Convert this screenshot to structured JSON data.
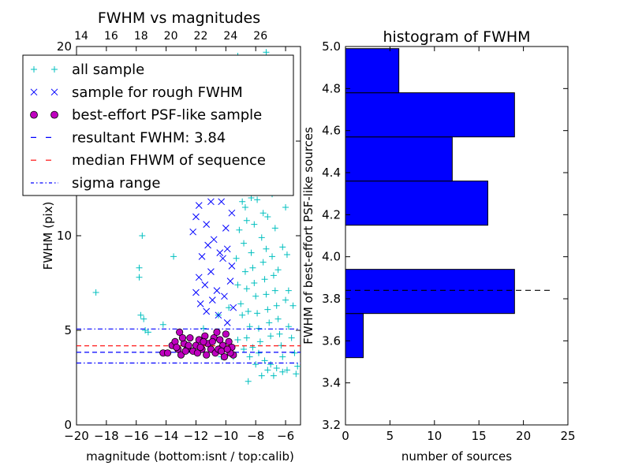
{
  "chart_data": [
    {
      "type": "scatter",
      "title": "FWHM vs magnitudes",
      "xlabel": "magnitude (bottom:isnt / top:calib)",
      "ylabel": "FWHM (pix)",
      "xlim": [
        -20,
        -5
      ],
      "ylim": [
        0,
        20
      ],
      "xticks": [
        -20,
        -18,
        -16,
        -14,
        -12,
        -10,
        -8,
        -6
      ],
      "yticks": [
        0,
        5,
        10,
        15,
        20
      ],
      "top_axis_ticks": [
        {
          "x": -20.0,
          "label": "14"
        },
        {
          "x": -18.0,
          "label": "16"
        },
        {
          "x": -16.0,
          "label": "18"
        },
        {
          "x": -14.0,
          "label": "20"
        },
        {
          "x": -12.0,
          "label": "22"
        },
        {
          "x": -10.0,
          "label": "24"
        },
        {
          "x": -8.0,
          "label": "26"
        }
      ],
      "legend_position": "upper-left",
      "legend": [
        {
          "label": "all sample",
          "marker": "+",
          "color": "#00bfbf"
        },
        {
          "label": "sample for rough FWHM",
          "marker": "x",
          "color": "#0000ff"
        },
        {
          "label": "best-effort PSF-like sample",
          "marker": "o",
          "color": "#bf00bf"
        },
        {
          "label": "resultant FWHM: 3.84",
          "marker": "dashed",
          "color": "#0000ff"
        },
        {
          "label": "median FHWM of sequence",
          "marker": "dashed",
          "color": "#ff0000"
        },
        {
          "label": "sigma range",
          "marker": "dashdot",
          "color": "#0000ff"
        }
      ],
      "lines": {
        "resultant_fwhm": 3.84,
        "median_fwhm": 4.18,
        "sigma_low": 3.27,
        "sigma_high": 5.07
      },
      "series": [
        {
          "name": "all sample",
          "color": "#00bfbf",
          "marker": "+",
          "points": [
            [
              -18.7,
              7.0
            ],
            [
              -15.6,
              10.0
            ],
            [
              -15.8,
              8.3
            ],
            [
              -15.8,
              7.8
            ],
            [
              -15.4,
              5.0
            ],
            [
              -15.7,
              5.8
            ],
            [
              -15.5,
              5.6
            ],
            [
              -15.2,
              4.9
            ],
            [
              -13.5,
              8.9
            ],
            [
              -14.2,
              5.3
            ],
            [
              -12.9,
              3.8
            ],
            [
              -11.5,
              5.1
            ],
            [
              -10.5,
              5.8
            ],
            [
              -9.8,
              6.2
            ],
            [
              -10.3,
              3.6
            ],
            [
              -9.5,
              3.6
            ],
            [
              -9.2,
              19.5
            ],
            [
              -9.0,
              16.3
            ],
            [
              -8.8,
              12.8
            ],
            [
              -8.7,
              11.5
            ],
            [
              -8.5,
              15.1
            ],
            [
              -8.6,
              10.8
            ],
            [
              -8.4,
              13.5
            ],
            [
              -8.2,
              19.0
            ],
            [
              -8.1,
              14.2
            ],
            [
              -8.0,
              18.5
            ],
            [
              -7.9,
              11.9
            ],
            [
              -7.8,
              12.4
            ],
            [
              -7.7,
              17.6
            ],
            [
              -7.5,
              12.9
            ],
            [
              -7.3,
              19.7
            ],
            [
              -7.2,
              11.0
            ],
            [
              -7.0,
              16.5
            ],
            [
              -6.8,
              14.8
            ],
            [
              -6.5,
              13.0
            ],
            [
              -6.2,
              9.4
            ],
            [
              -6.0,
              19.0
            ],
            [
              -7.6,
              15.0
            ],
            [
              -8.9,
              17.4
            ],
            [
              -8.3,
              16.9
            ],
            [
              -9.4,
              13.2
            ],
            [
              -9.1,
              10.3
            ],
            [
              -9.3,
              8.8
            ],
            [
              -9.2,
              7.4
            ],
            [
              -9.0,
              6.4
            ],
            [
              -8.9,
              5.8
            ],
            [
              -8.8,
              9.6
            ],
            [
              -8.7,
              8.1
            ],
            [
              -8.6,
              7.2
            ],
            [
              -8.5,
              6.0
            ],
            [
              -8.4,
              5.2
            ],
            [
              -8.3,
              9.1
            ],
            [
              -8.2,
              8.3
            ],
            [
              -8.1,
              7.5
            ],
            [
              -8.0,
              6.8
            ],
            [
              -7.9,
              5.9
            ],
            [
              -7.8,
              5.1
            ],
            [
              -7.7,
              4.4
            ],
            [
              -7.6,
              9.9
            ],
            [
              -7.5,
              8.6
            ],
            [
              -7.4,
              7.7
            ],
            [
              -7.3,
              6.9
            ],
            [
              -7.2,
              6.1
            ],
            [
              -7.1,
              5.4
            ],
            [
              -7.0,
              4.7
            ],
            [
              -6.9,
              8.9
            ],
            [
              -6.8,
              7.9
            ],
            [
              -6.7,
              7.1
            ],
            [
              -6.6,
              6.3
            ],
            [
              -6.5,
              5.6
            ],
            [
              -6.4,
              4.8
            ],
            [
              -6.3,
              4.2
            ],
            [
              -6.2,
              3.6
            ],
            [
              -6.0,
              6.6
            ],
            [
              -5.8,
              5.2
            ],
            [
              -5.6,
              4.6
            ],
            [
              -5.4,
              3.8
            ],
            [
              -5.2,
              3.1
            ],
            [
              -8.6,
              4.6
            ],
            [
              -8.2,
              4.1
            ],
            [
              -7.8,
              3.8
            ],
            [
              -7.4,
              3.4
            ],
            [
              -7.0,
              3.2
            ],
            [
              -6.6,
              3.0
            ],
            [
              -6.2,
              2.8
            ],
            [
              -7.2,
              2.9
            ],
            [
              -7.6,
              2.6
            ],
            [
              -8.0,
              3.2
            ],
            [
              -8.4,
              3.6
            ],
            [
              -8.8,
              4.0
            ],
            [
              -9.2,
              4.5
            ],
            [
              -6.8,
              2.6
            ],
            [
              -5.9,
              2.9
            ],
            [
              -8.5,
              2.3
            ],
            [
              -8.9,
              11.8
            ],
            [
              -8.1,
              10.6
            ],
            [
              -7.3,
              9.3
            ],
            [
              -6.5,
              8.2
            ],
            [
              -5.8,
              7.1
            ],
            [
              -9.1,
              14.6
            ],
            [
              -7.9,
              13.8
            ],
            [
              -6.9,
              12.2
            ],
            [
              -8.3,
              12.0
            ],
            [
              -7.5,
              11.2
            ],
            [
              -6.7,
              10.4
            ],
            [
              -5.9,
              9.0
            ],
            [
              -5.5,
              6.3
            ],
            [
              -5.3,
              2.7
            ],
            [
              -9.4,
              17.0
            ],
            [
              -7.0,
              18.0
            ],
            [
              -6.3,
              16.0
            ],
            [
              -6.0,
              11.5
            ]
          ]
        },
        {
          "name": "sample for rough FWHM",
          "color": "#0000ff",
          "marker": "x",
          "points": [
            [
              -12.4,
              14.8
            ],
            [
              -11.9,
              12.8
            ],
            [
              -11.5,
              13.6
            ],
            [
              -11.8,
              11.6
            ],
            [
              -12.0,
              11.0
            ],
            [
              -11.3,
              10.6
            ],
            [
              -11.0,
              11.8
            ],
            [
              -10.6,
              12.9
            ],
            [
              -10.2,
              14.2
            ],
            [
              -9.8,
              13.4
            ],
            [
              -9.6,
              15.8
            ],
            [
              -9.4,
              14.4
            ],
            [
              -10.0,
              10.4
            ],
            [
              -10.8,
              9.8
            ],
            [
              -11.2,
              9.5
            ],
            [
              -11.6,
              8.9
            ],
            [
              -12.2,
              10.2
            ],
            [
              -11.8,
              7.8
            ],
            [
              -11.4,
              7.4
            ],
            [
              -11.0,
              8.1
            ],
            [
              -10.6,
              7.1
            ],
            [
              -10.2,
              8.8
            ],
            [
              -9.9,
              9.3
            ],
            [
              -9.6,
              11.2
            ],
            [
              -9.5,
              12.3
            ],
            [
              -10.4,
              9.1
            ],
            [
              -12.0,
              7.0
            ],
            [
              -11.7,
              6.4
            ],
            [
              -11.3,
              6.0
            ],
            [
              -10.9,
              6.6
            ],
            [
              -10.5,
              5.8
            ],
            [
              -10.1,
              6.8
            ],
            [
              -9.7,
              7.6
            ],
            [
              -9.5,
              6.2
            ],
            [
              -9.9,
              5.4
            ],
            [
              -9.6,
              8.4
            ],
            [
              -10.3,
              11.8
            ],
            [
              -12.6,
              13.4
            ],
            [
              -9.7,
              17.4
            ],
            [
              -9.5,
              18.9
            ],
            [
              -10.8,
              14.6
            ],
            [
              -11.1,
              13.0
            ]
          ]
        },
        {
          "name": "best-effort PSF-like sample",
          "color": "#bf00bf",
          "marker": "o",
          "points": [
            [
              -14.2,
              3.8
            ],
            [
              -13.9,
              3.8
            ],
            [
              -13.6,
              4.2
            ],
            [
              -13.4,
              4.4
            ],
            [
              -13.2,
              4.0
            ],
            [
              -13.0,
              3.7
            ],
            [
              -12.8,
              4.3
            ],
            [
              -12.6,
              4.0
            ],
            [
              -12.4,
              4.6
            ],
            [
              -12.2,
              3.9
            ],
            [
              -12.0,
              4.2
            ],
            [
              -11.8,
              4.5
            ],
            [
              -11.6,
              4.0
            ],
            [
              -11.4,
              4.7
            ],
            [
              -11.2,
              4.3
            ],
            [
              -11.0,
              4.0
            ],
            [
              -10.8,
              4.6
            ],
            [
              -10.6,
              4.9
            ],
            [
              -10.4,
              4.5
            ],
            [
              -10.2,
              4.2
            ],
            [
              -10.0,
              4.8
            ],
            [
              -9.8,
              4.4
            ],
            [
              -9.6,
              4.1
            ],
            [
              -9.5,
              3.7
            ],
            [
              -13.1,
              4.9
            ],
            [
              -12.5,
              4.2
            ],
            [
              -11.9,
              3.8
            ],
            [
              -11.3,
              3.7
            ],
            [
              -10.7,
              3.8
            ],
            [
              -10.1,
              3.6
            ],
            [
              -9.7,
              3.8
            ],
            [
              -12.9,
              4.6
            ],
            [
              -11.7,
              4.1
            ],
            [
              -10.9,
              4.4
            ],
            [
              -10.5,
              4.0
            ],
            [
              -10.3,
              3.9
            ],
            [
              -9.9,
              4.0
            ],
            [
              -13.3,
              4.1
            ],
            [
              -12.7,
              3.9
            ],
            [
              -11.5,
              4.4
            ]
          ]
        }
      ]
    },
    {
      "type": "bar",
      "orientation": "horizontal",
      "title": "histogram of FWHM",
      "xlabel": "number of sources",
      "ylabel": "FWHM of best-effort PSF-like sources",
      "xlim": [
        0,
        25
      ],
      "ylim": [
        3.2,
        5.0
      ],
      "xticks": [
        0,
        5,
        10,
        15,
        20,
        25
      ],
      "yticks": [
        3.2,
        3.4,
        3.6,
        3.8,
        4.0,
        4.2,
        4.4,
        4.6,
        4.8,
        5.0
      ],
      "bar_color": "#0000ff",
      "bins": [
        {
          "from": 3.52,
          "to": 3.73,
          "count": 2
        },
        {
          "from": 3.73,
          "to": 3.94,
          "count": 19
        },
        {
          "from": 3.94,
          "to": 4.15,
          "count": 0
        },
        {
          "from": 4.15,
          "to": 4.36,
          "count": 16
        },
        {
          "from": 4.36,
          "to": 4.57,
          "count": 12
        },
        {
          "from": 4.57,
          "to": 4.78,
          "count": 19
        },
        {
          "from": 4.78,
          "to": 4.99,
          "count": 6
        }
      ],
      "bins_note": "",
      "reference_line": {
        "y": 3.84,
        "x_to": 23,
        "style": "dashed",
        "color": "#000000"
      }
    }
  ]
}
